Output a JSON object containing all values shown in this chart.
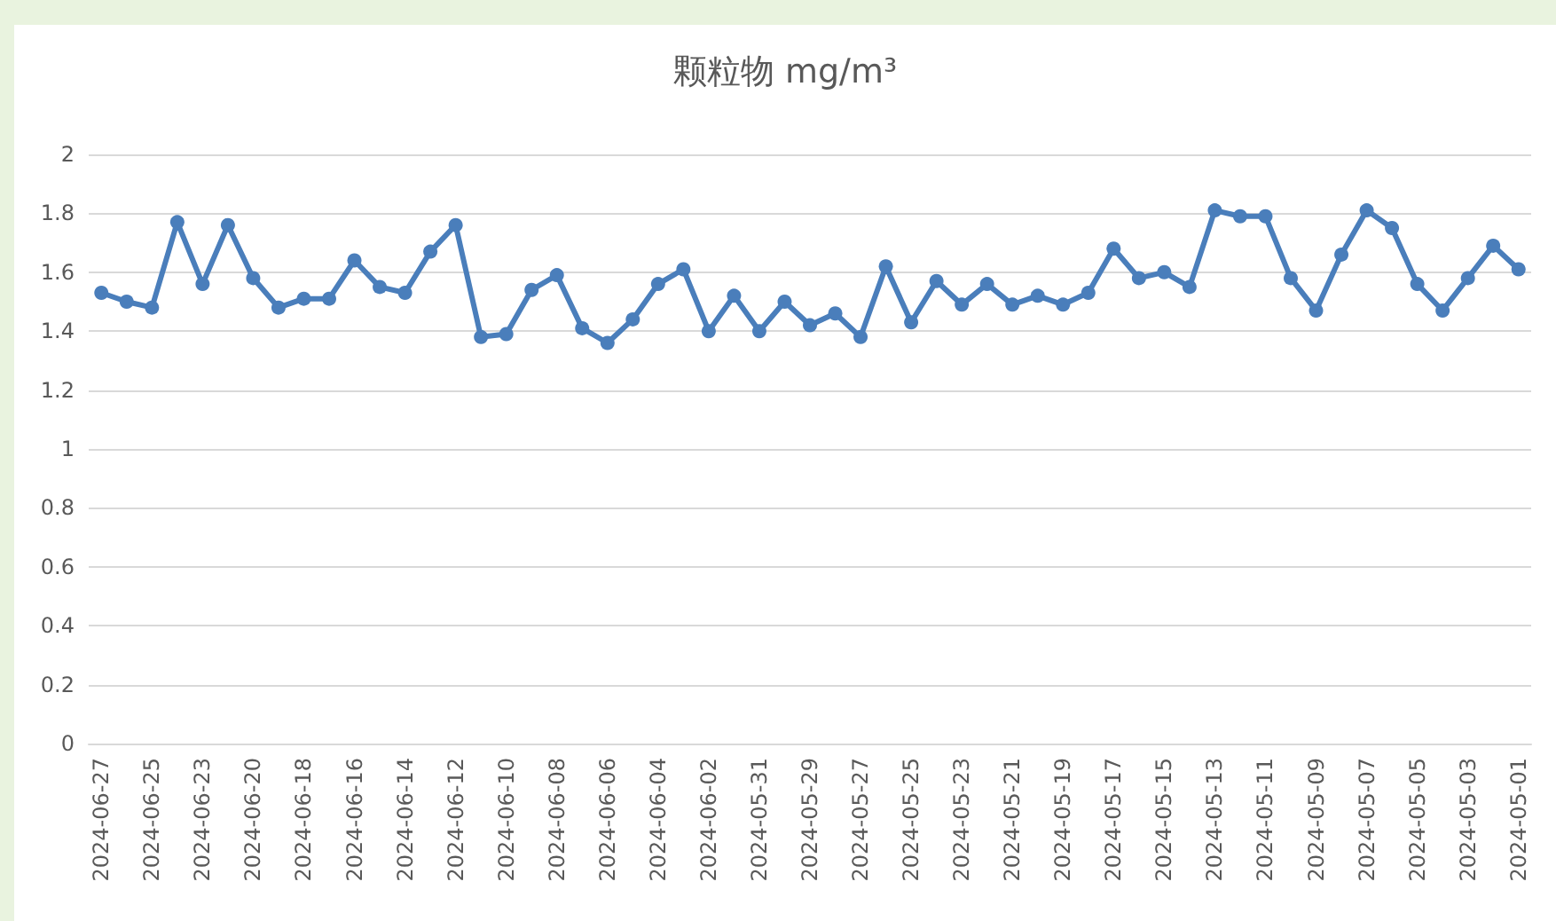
{
  "chart_data": {
    "type": "line",
    "title": "颗粒物 mg/m³",
    "categories": [
      "2024-06-27",
      null,
      "2024-06-25",
      null,
      "2024-06-23",
      null,
      "2024-06-20",
      null,
      "2024-06-18",
      null,
      "2024-06-16",
      null,
      "2024-06-14",
      null,
      "2024-06-12",
      null,
      "2024-06-10",
      null,
      "2024-06-08",
      null,
      "2024-06-06",
      null,
      "2024-06-04",
      null,
      "2024-06-02",
      null,
      "2024-05-31",
      null,
      "2024-05-29",
      null,
      "2024-05-27",
      null,
      "2024-05-25",
      null,
      "2024-05-23",
      null,
      "2024-05-21",
      null,
      "2024-05-19",
      null,
      "2024-05-17",
      null,
      "2024-05-15",
      null,
      "2024-05-13",
      null,
      "2024-05-11",
      null,
      "2024-05-09",
      null,
      "2024-05-07",
      null,
      "2024-05-05",
      null,
      "2024-05-03",
      null,
      "2024-05-01"
    ],
    "series": [
      {
        "color": "#4a7ebb",
        "values": [
          1.53,
          1.5,
          1.48,
          1.77,
          1.56,
          1.76,
          1.58,
          1.48,
          1.51,
          1.51,
          1.64,
          1.55,
          1.53,
          1.67,
          1.76,
          1.38,
          1.39,
          1.54,
          1.59,
          1.41,
          1.36,
          1.44,
          1.56,
          1.61,
          1.4,
          1.52,
          1.4,
          1.5,
          1.42,
          1.46,
          1.38,
          1.62,
          1.43,
          1.57,
          1.49,
          1.56,
          1.49,
          1.52,
          1.49,
          1.53,
          1.68,
          1.58,
          1.6,
          1.55,
          1.81,
          1.79,
          1.79,
          1.58,
          1.47,
          1.66,
          1.81,
          1.75,
          1.56,
          1.47,
          1.58,
          1.69,
          1.61
        ]
      }
    ],
    "ylim": [
      0,
      2
    ],
    "yticks": [
      0,
      0.2,
      0.4,
      0.6,
      0.8,
      1,
      1.2,
      1.4,
      1.6,
      1.8,
      2
    ],
    "grid": "y",
    "marker": "circle",
    "line_style": "solid"
  }
}
